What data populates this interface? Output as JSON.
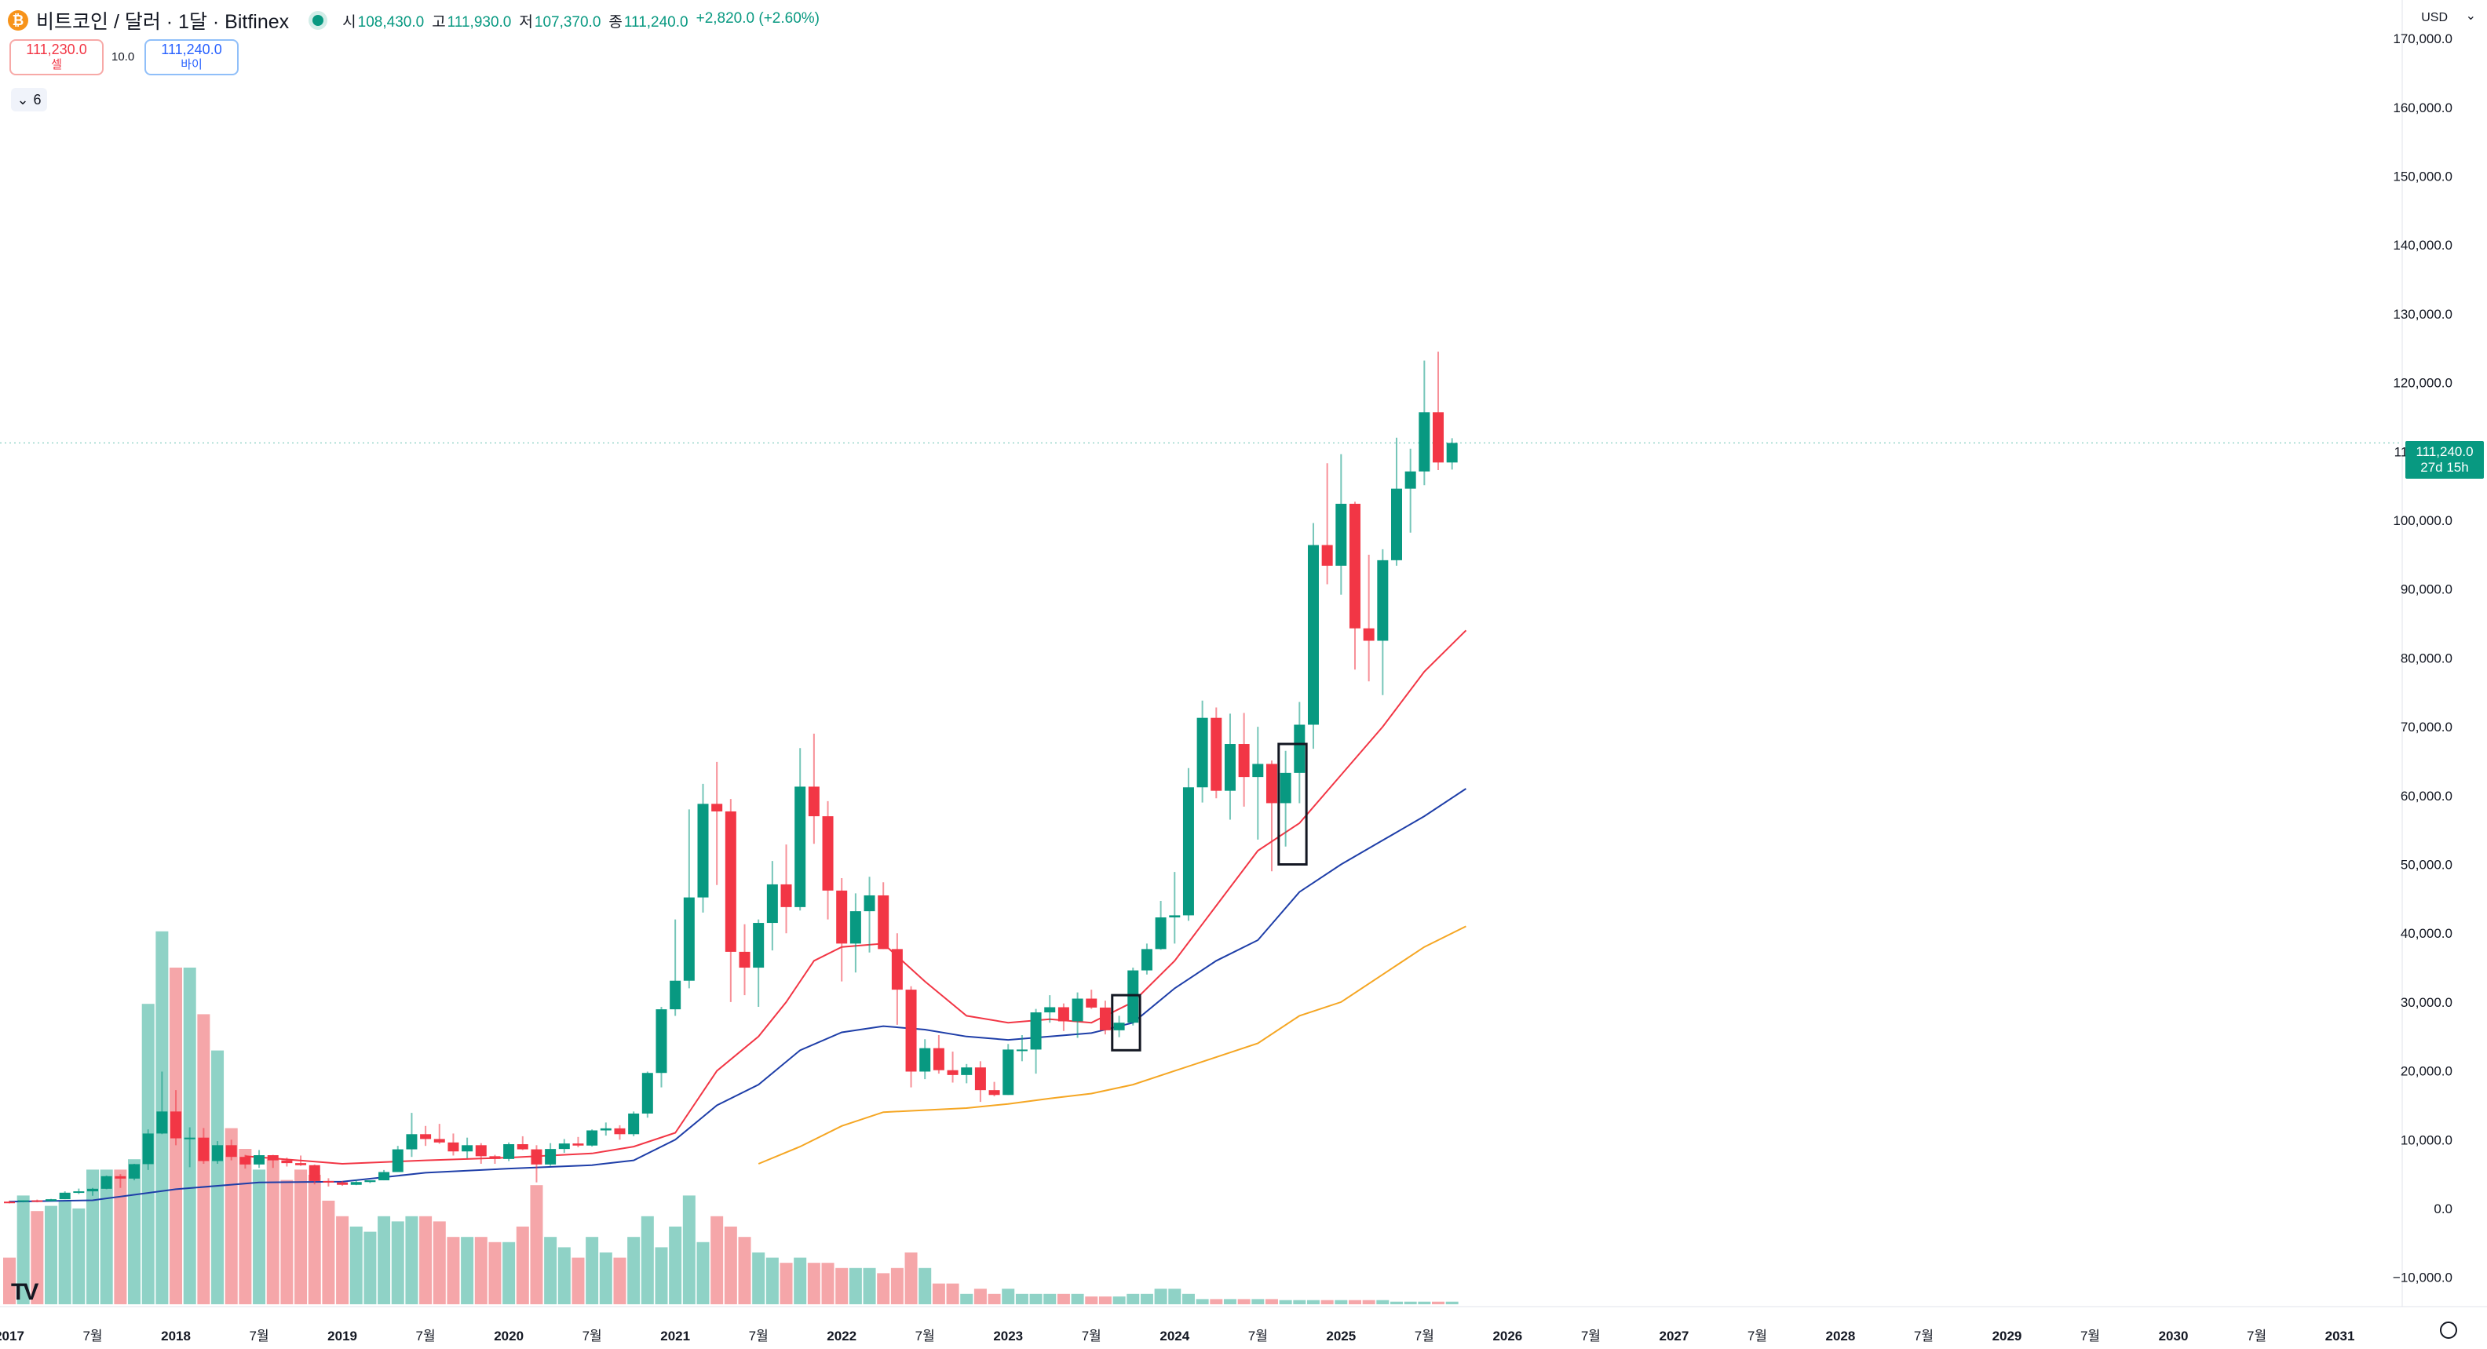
{
  "header": {
    "coin_glyph": "₿",
    "symbol": "비트코인 / 달러 · 1달 · Bitfinex",
    "ohlc": {
      "o_label": "시",
      "o": "108,430.0",
      "h_label": "고",
      "h": "111,930.0",
      "l_label": "저",
      "l": "107,370.0",
      "c_label": "종",
      "c": "111,240.0",
      "change": "+2,820.0 (+2.60%)"
    }
  },
  "trade": {
    "sell_price": "111,230.0",
    "sell_label": "셀",
    "spread": "10.0",
    "buy_price": "111,240.0",
    "buy_label": "바이"
  },
  "indicators": {
    "chevron": "⌄",
    "count": "6"
  },
  "currency": "USD",
  "currency_chevron": "⌄",
  "last_label": {
    "price": "111,240.0",
    "countdown": "27d 15h"
  },
  "colors": {
    "up": "#089981",
    "down": "#f23645",
    "vol_up": "#8fd2c6",
    "vol_down": "#f5a6a9",
    "ma_red": "#f23645",
    "ma_blue": "#1e3ea8",
    "ma_orange": "#f5a623"
  },
  "chart_data": {
    "type": "candlestick",
    "interval": "1M",
    "start": "2017-01",
    "y_ticks": [
      -10000,
      0,
      10000,
      20000,
      30000,
      40000,
      50000,
      60000,
      70000,
      80000,
      90000,
      100000,
      110000,
      120000,
      130000,
      140000,
      150000,
      160000,
      170000
    ],
    "y_tick_labels": [
      "−10,000.0",
      "0.0",
      "10,000.0",
      "20,000.0",
      "30,000.0",
      "40,000.0",
      "50,000.0",
      "60,000.0",
      "70,000.0",
      "80,000.0",
      "90,000.0",
      "100,000.0",
      "110,000.0",
      "120,000.0",
      "130,000.0",
      "140,000.0",
      "150,000.0",
      "160,000.0",
      "170,000.0"
    ],
    "x_ticks": [
      {
        "month": 0,
        "label": "2017"
      },
      {
        "month": 6,
        "label": "7월"
      },
      {
        "month": 12,
        "label": "2018"
      },
      {
        "month": 18,
        "label": "7월"
      },
      {
        "month": 24,
        "label": "2019"
      },
      {
        "month": 30,
        "label": "7월"
      },
      {
        "month": 36,
        "label": "2020"
      },
      {
        "month": 42,
        "label": "7월"
      },
      {
        "month": 48,
        "label": "2021"
      },
      {
        "month": 54,
        "label": "7월"
      },
      {
        "month": 60,
        "label": "2022"
      },
      {
        "month": 66,
        "label": "7월"
      },
      {
        "month": 72,
        "label": "2023"
      },
      {
        "month": 78,
        "label": "7월"
      },
      {
        "month": 84,
        "label": "2024"
      },
      {
        "month": 90,
        "label": "7월"
      },
      {
        "month": 96,
        "label": "2025"
      },
      {
        "month": 102,
        "label": "7월"
      },
      {
        "month": 108,
        "label": "2026"
      },
      {
        "month": 114,
        "label": "7월"
      },
      {
        "month": 120,
        "label": "2027"
      },
      {
        "month": 126,
        "label": "7월"
      },
      {
        "month": 132,
        "label": "2028"
      },
      {
        "month": 138,
        "label": "7월"
      },
      {
        "month": 144,
        "label": "2029"
      },
      {
        "month": 150,
        "label": "7월"
      },
      {
        "month": 156,
        "label": "2030"
      },
      {
        "month": 162,
        "label": "7월"
      },
      {
        "month": 168,
        "label": "2031"
      }
    ],
    "last_price": 111240,
    "candles": [
      [
        1000,
        1150,
        750,
        970
      ],
      [
        970,
        1200,
        900,
        1190
      ],
      [
        1190,
        1300,
        900,
        1080
      ],
      [
        1080,
        1400,
        1060,
        1350
      ],
      [
        1350,
        2500,
        1350,
        2300
      ],
      [
        2300,
        2900,
        2100,
        2500
      ],
      [
        2500,
        3000,
        1850,
        2870
      ],
      [
        2870,
        4800,
        2800,
        4700
      ],
      [
        4700,
        5000,
        3000,
        4350
      ],
      [
        4350,
        6500,
        4100,
        6450
      ],
      [
        6450,
        11500,
        5600,
        10900
      ],
      [
        10900,
        19900,
        10800,
        14100
      ],
      [
        14100,
        17200,
        9200,
        10200
      ],
      [
        10200,
        11800,
        6000,
        10300
      ],
      [
        10300,
        11700,
        6500,
        6900
      ],
      [
        6900,
        9800,
        6500,
        9200
      ],
      [
        9200,
        10000,
        7000,
        7500
      ],
      [
        7500,
        7800,
        5800,
        6400
      ],
      [
        6400,
        8500,
        5900,
        7750
      ],
      [
        7750,
        7800,
        5900,
        7000
      ],
      [
        7000,
        7400,
        6100,
        6600
      ],
      [
        6600,
        7700,
        6200,
        6300
      ],
      [
        6300,
        6400,
        3500,
        4000
      ],
      [
        4000,
        4400,
        3200,
        3800
      ],
      [
        3800,
        4000,
        3300,
        3450
      ],
      [
        3450,
        4200,
        3400,
        3850
      ],
      [
        3850,
        4100,
        3700,
        4100
      ],
      [
        4100,
        5600,
        4100,
        5300
      ],
      [
        5300,
        9100,
        5300,
        8600
      ],
      [
        8600,
        13900,
        7500,
        10800
      ],
      [
        10800,
        12000,
        9100,
        10100
      ],
      [
        10100,
        12300,
        9400,
        9600
      ],
      [
        9600,
        10900,
        7700,
        8300
      ],
      [
        8300,
        10300,
        7300,
        9200
      ],
      [
        9200,
        9500,
        6500,
        7600
      ],
      [
        7600,
        7800,
        6500,
        7200
      ],
      [
        7200,
        9600,
        6900,
        9350
      ],
      [
        9350,
        10500,
        8500,
        8600
      ],
      [
        8600,
        9200,
        3800,
        6400
      ],
      [
        6400,
        9500,
        6200,
        8650
      ],
      [
        8650,
        10100,
        8100,
        9450
      ],
      [
        9450,
        10400,
        8900,
        9150
      ],
      [
        9150,
        11500,
        9000,
        11350
      ],
      [
        11350,
        12500,
        10600,
        11650
      ],
      [
        11650,
        12100,
        10000,
        10800
      ],
      [
        10800,
        14100,
        10500,
        13800
      ],
      [
        13800,
        19900,
        13200,
        19700
      ],
      [
        19700,
        29300,
        17600,
        28950
      ],
      [
        28950,
        42000,
        28000,
        33100
      ],
      [
        33100,
        58000,
        32000,
        45200
      ],
      [
        45200,
        61700,
        43000,
        58800
      ],
      [
        58800,
        64900,
        47000,
        57700
      ],
      [
        57700,
        59500,
        30000,
        37300
      ],
      [
        37300,
        41300,
        31000,
        35000
      ],
      [
        35000,
        42000,
        29300,
        41500
      ],
      [
        41500,
        50500,
        37500,
        47100
      ],
      [
        47100,
        52900,
        40000,
        43800
      ],
      [
        43800,
        66900,
        43300,
        61300
      ],
      [
        61300,
        69000,
        53000,
        57000
      ],
      [
        57000,
        59200,
        42000,
        46200
      ],
      [
        46200,
        48000,
        33000,
        38500
      ],
      [
        38500,
        45800,
        34300,
        43200
      ],
      [
        43200,
        48200,
        37200,
        45500
      ],
      [
        45500,
        47400,
        37700,
        37700
      ],
      [
        37700,
        40000,
        26700,
        31800
      ],
      [
        31800,
        32300,
        17600,
        19900
      ],
      [
        19900,
        24600,
        18800,
        23300
      ],
      [
        23300,
        25200,
        19600,
        20100
      ],
      [
        20100,
        22800,
        18300,
        19400
      ],
      [
        19400,
        21000,
        18200,
        20500
      ],
      [
        20500,
        21400,
        15500,
        17200
      ],
      [
        17200,
        18400,
        16300,
        16500
      ],
      [
        16500,
        23900,
        16500,
        23100
      ],
      [
        23100,
        25200,
        21400,
        23100
      ],
      [
        23100,
        29000,
        19600,
        28500
      ],
      [
        28500,
        31000,
        27000,
        29250
      ],
      [
        29250,
        29800,
        25800,
        27200
      ],
      [
        27200,
        31400,
        24800,
        30500
      ],
      [
        30500,
        31800,
        29000,
        29200
      ],
      [
        29200,
        30200,
        25300,
        25900
      ],
      [
        25900,
        28000,
        24900,
        27000
      ],
      [
        27000,
        35000,
        26600,
        34600
      ],
      [
        34600,
        38500,
        34000,
        37700
      ],
      [
        37700,
        44700,
        37600,
        42300
      ],
      [
        42300,
        48900,
        38500,
        42600
      ],
      [
        42600,
        64000,
        41800,
        61200
      ],
      [
        61200,
        73800,
        59000,
        71300
      ],
      [
        71300,
        72800,
        59600,
        60700
      ],
      [
        60700,
        71900,
        56500,
        67500
      ],
      [
        67500,
        72000,
        58400,
        62700
      ],
      [
        62700,
        70000,
        53600,
        64600
      ],
      [
        64600,
        65100,
        49000,
        58900
      ],
      [
        58900,
        66500,
        52600,
        63300
      ],
      [
        63300,
        73600,
        58900,
        70300
      ],
      [
        70300,
        99600,
        66800,
        96400
      ],
      [
        96400,
        108300,
        90700,
        93400
      ],
      [
        93400,
        109600,
        89200,
        102400
      ],
      [
        102400,
        102700,
        78300,
        84300
      ],
      [
        84300,
        95000,
        76600,
        82500
      ],
      [
        82500,
        95800,
        74600,
        94200
      ],
      [
        94200,
        112000,
        93400,
        104600
      ],
      [
        104600,
        110400,
        98200,
        107100
      ],
      [
        107100,
        123200,
        105100,
        115700
      ],
      [
        115700,
        124500,
        107300,
        108400
      ],
      [
        108400,
        111930,
        107370,
        111240
      ]
    ],
    "volumes": [
      90,
      210,
      180,
      190,
      200,
      185,
      260,
      260,
      260,
      280,
      580,
      720,
      650,
      650,
      560,
      490,
      340,
      300,
      260,
      280,
      240,
      260,
      250,
      200,
      170,
      150,
      140,
      170,
      160,
      170,
      170,
      160,
      130,
      130,
      130,
      120,
      120,
      150,
      230,
      130,
      110,
      90,
      130,
      100,
      90,
      130,
      170,
      110,
      150,
      210,
      120,
      170,
      150,
      130,
      100,
      90,
      80,
      90,
      80,
      80,
      70,
      70,
      70,
      60,
      70,
      100,
      70,
      40,
      40,
      20,
      30,
      20,
      30,
      20,
      20,
      20,
      20,
      20,
      15,
      15,
      15,
      20,
      20,
      30,
      30,
      20,
      10,
      10,
      10,
      10,
      10,
      10,
      8,
      8,
      8,
      8,
      8,
      8,
      8,
      8,
      5,
      5,
      5,
      5,
      5
    ],
    "ma_red": [
      [
        17,
        7600
      ],
      [
        24,
        6500
      ],
      [
        30,
        7000
      ],
      [
        36,
        7400
      ],
      [
        42,
        8000
      ],
      [
        45,
        9000
      ],
      [
        48,
        11000
      ],
      [
        51,
        20000
      ],
      [
        54,
        25000
      ],
      [
        56,
        30000
      ],
      [
        58,
        36000
      ],
      [
        60,
        38000
      ],
      [
        63,
        38500
      ],
      [
        66,
        33000
      ],
      [
        69,
        28000
      ],
      [
        72,
        27000
      ],
      [
        75,
        27500
      ],
      [
        78,
        27000
      ],
      [
        81,
        30000
      ],
      [
        84,
        36000
      ],
      [
        87,
        44000
      ],
      [
        90,
        52000
      ],
      [
        93,
        56000
      ],
      [
        96,
        63000
      ],
      [
        99,
        70000
      ],
      [
        102,
        78000
      ],
      [
        105,
        84000
      ]
    ],
    "ma_blue": [
      [
        0,
        1000
      ],
      [
        6,
        1200
      ],
      [
        12,
        2800
      ],
      [
        18,
        3800
      ],
      [
        24,
        3900
      ],
      [
        30,
        5200
      ],
      [
        36,
        5800
      ],
      [
        42,
        6300
      ],
      [
        45,
        7000
      ],
      [
        48,
        10000
      ],
      [
        51,
        15000
      ],
      [
        54,
        18000
      ],
      [
        57,
        23000
      ],
      [
        60,
        25600
      ],
      [
        63,
        26500
      ],
      [
        66,
        26000
      ],
      [
        69,
        25000
      ],
      [
        72,
        24500
      ],
      [
        75,
        25000
      ],
      [
        78,
        25500
      ],
      [
        81,
        27000
      ],
      [
        84,
        32000
      ],
      [
        87,
        36000
      ],
      [
        90,
        39000
      ],
      [
        93,
        46000
      ],
      [
        96,
        50000
      ],
      [
        99,
        53500
      ],
      [
        102,
        57000
      ],
      [
        105,
        61000
      ]
    ],
    "ma_orange": [
      [
        54,
        6500
      ],
      [
        57,
        9000
      ],
      [
        60,
        12000
      ],
      [
        63,
        14000
      ],
      [
        66,
        14300
      ],
      [
        69,
        14600
      ],
      [
        72,
        15200
      ],
      [
        75,
        16000
      ],
      [
        78,
        16700
      ],
      [
        81,
        18000
      ],
      [
        84,
        20000
      ],
      [
        87,
        22000
      ],
      [
        90,
        24000
      ],
      [
        93,
        28000
      ],
      [
        96,
        30000
      ],
      [
        99,
        34000
      ],
      [
        102,
        38000
      ],
      [
        105,
        41000
      ]
    ],
    "annotation_boxes": [
      {
        "from_month": 79.5,
        "to_month": 81.5,
        "y_low": 23000,
        "y_high": 31000
      },
      {
        "from_month": 91.5,
        "to_month": 93.5,
        "y_low": 50000,
        "y_high": 67500
      }
    ]
  }
}
